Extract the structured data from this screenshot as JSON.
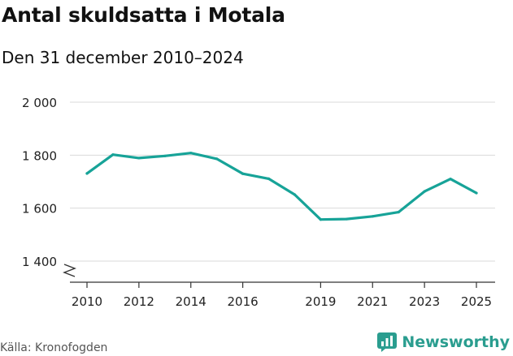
{
  "header": {
    "title": "Antal skuldsatta i Motala",
    "subtitle": "Den 31 december 2010–2024"
  },
  "footer": {
    "source": "Källa: Kronofogden",
    "brand": "Newsworthy"
  },
  "colors": {
    "line": "#17a398",
    "grid": "#d9d9d9",
    "axis": "#333333",
    "brand": "#2a9d8f"
  },
  "chart_data": {
    "type": "line",
    "x": [
      2010,
      2011,
      2012,
      2013,
      2014,
      2015,
      2016,
      2017,
      2018,
      2019,
      2020,
      2021,
      2022,
      2023,
      2024,
      2025
    ],
    "series": [
      {
        "values": [
          1731,
          1802,
          1789,
          1797,
          1808,
          1786,
          1730,
          1711,
          1651,
          1557,
          1559,
          1569,
          1585,
          1663,
          1710,
          1657
        ]
      }
    ],
    "x_tick_labels": [
      "2010",
      "2012",
      "2014",
      "2016",
      "2019",
      "2021",
      "2023",
      "2025"
    ],
    "y_ticks": [
      1400,
      1600,
      1800,
      2000
    ],
    "y_tick_labels": [
      "1 400",
      "1 600",
      "1 800",
      "2 000"
    ],
    "xlim": [
      2010,
      2025
    ],
    "ylim": [
      1400,
      2000
    ],
    "y_axis_break": true,
    "grid": true,
    "legend": "none"
  }
}
